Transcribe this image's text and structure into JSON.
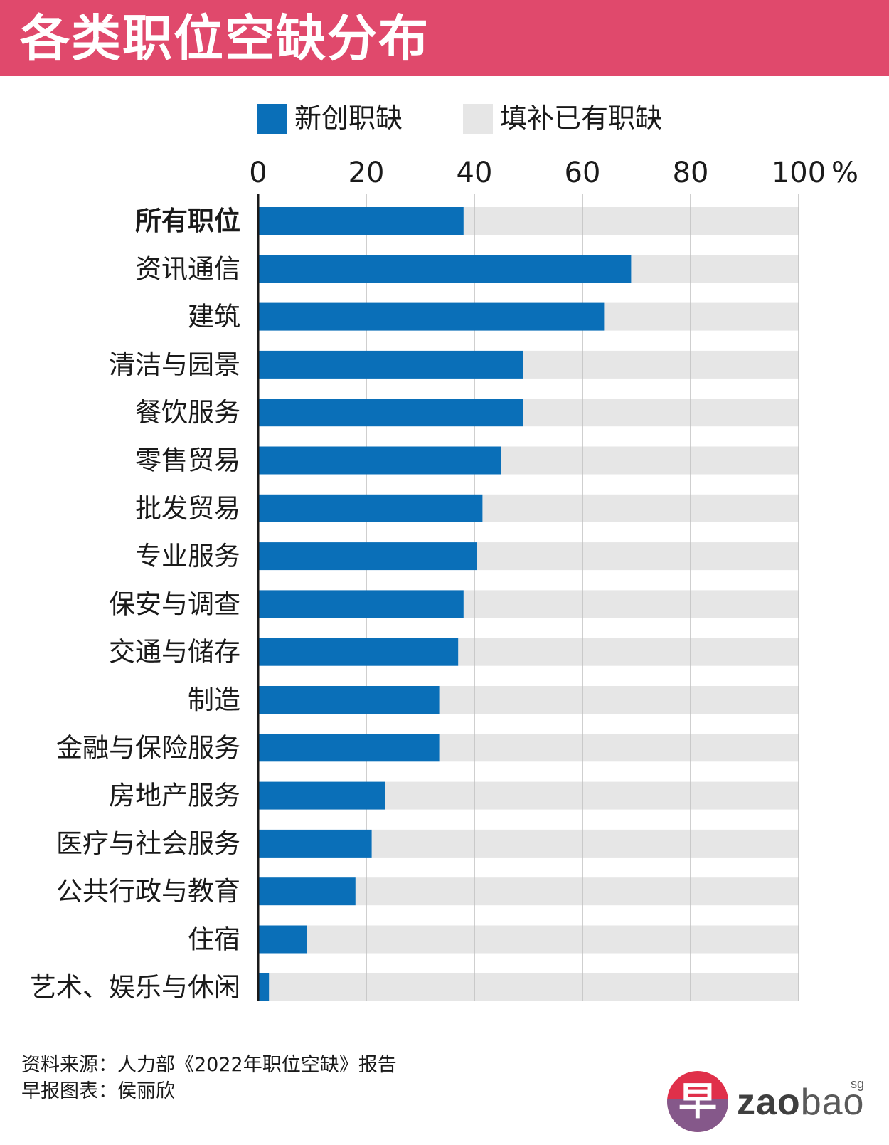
{
  "title": "各类职位空缺分布",
  "legend": {
    "new_label": "新创职缺",
    "fill_label": "填补已有职缺"
  },
  "colors": {
    "header": "#e0496c",
    "new_jobs": "#0a6fb8",
    "existing_jobs": "#e6e6e6",
    "grid": "#bfbfbf"
  },
  "footer": {
    "source": "资料来源：人力部《2022年职位空缺》报告",
    "credit": "早报图表：侯丽欣"
  },
  "logo": {
    "char": "早",
    "brand_bold": "zao",
    "brand_light": "bao",
    "suffix": "sg"
  },
  "chart_data": {
    "type": "bar",
    "orientation": "horizontal",
    "stacked": true,
    "unit_label": "%",
    "xlim": [
      0,
      100
    ],
    "xticks": [
      0,
      20,
      40,
      60,
      80,
      100
    ],
    "grid": true,
    "legend_position": "top",
    "categories": [
      "所有职位",
      "资讯通信",
      "建筑",
      "清洁与园景",
      "餐饮服务",
      "零售贸易",
      "批发贸易",
      "专业服务",
      "保安与调查",
      "交通与储存",
      "制造",
      "金融与保险服务",
      "房地产服务",
      "医疗与社会服务",
      "公共行政与教育",
      "住宿",
      "艺术、娱乐与休闲"
    ],
    "bold_categories": [
      "所有职位"
    ],
    "series": [
      {
        "name": "新创职缺",
        "values": [
          38,
          69,
          64,
          49,
          49,
          45,
          41.5,
          40.5,
          38,
          37,
          33.5,
          33.5,
          23.5,
          21,
          18,
          9,
          2
        ]
      },
      {
        "name": "填补已有职缺",
        "values": [
          62,
          31,
          36,
          51,
          51,
          55,
          58.5,
          59.5,
          62,
          63,
          66.5,
          66.5,
          76.5,
          79,
          82,
          91,
          98
        ]
      }
    ]
  }
}
